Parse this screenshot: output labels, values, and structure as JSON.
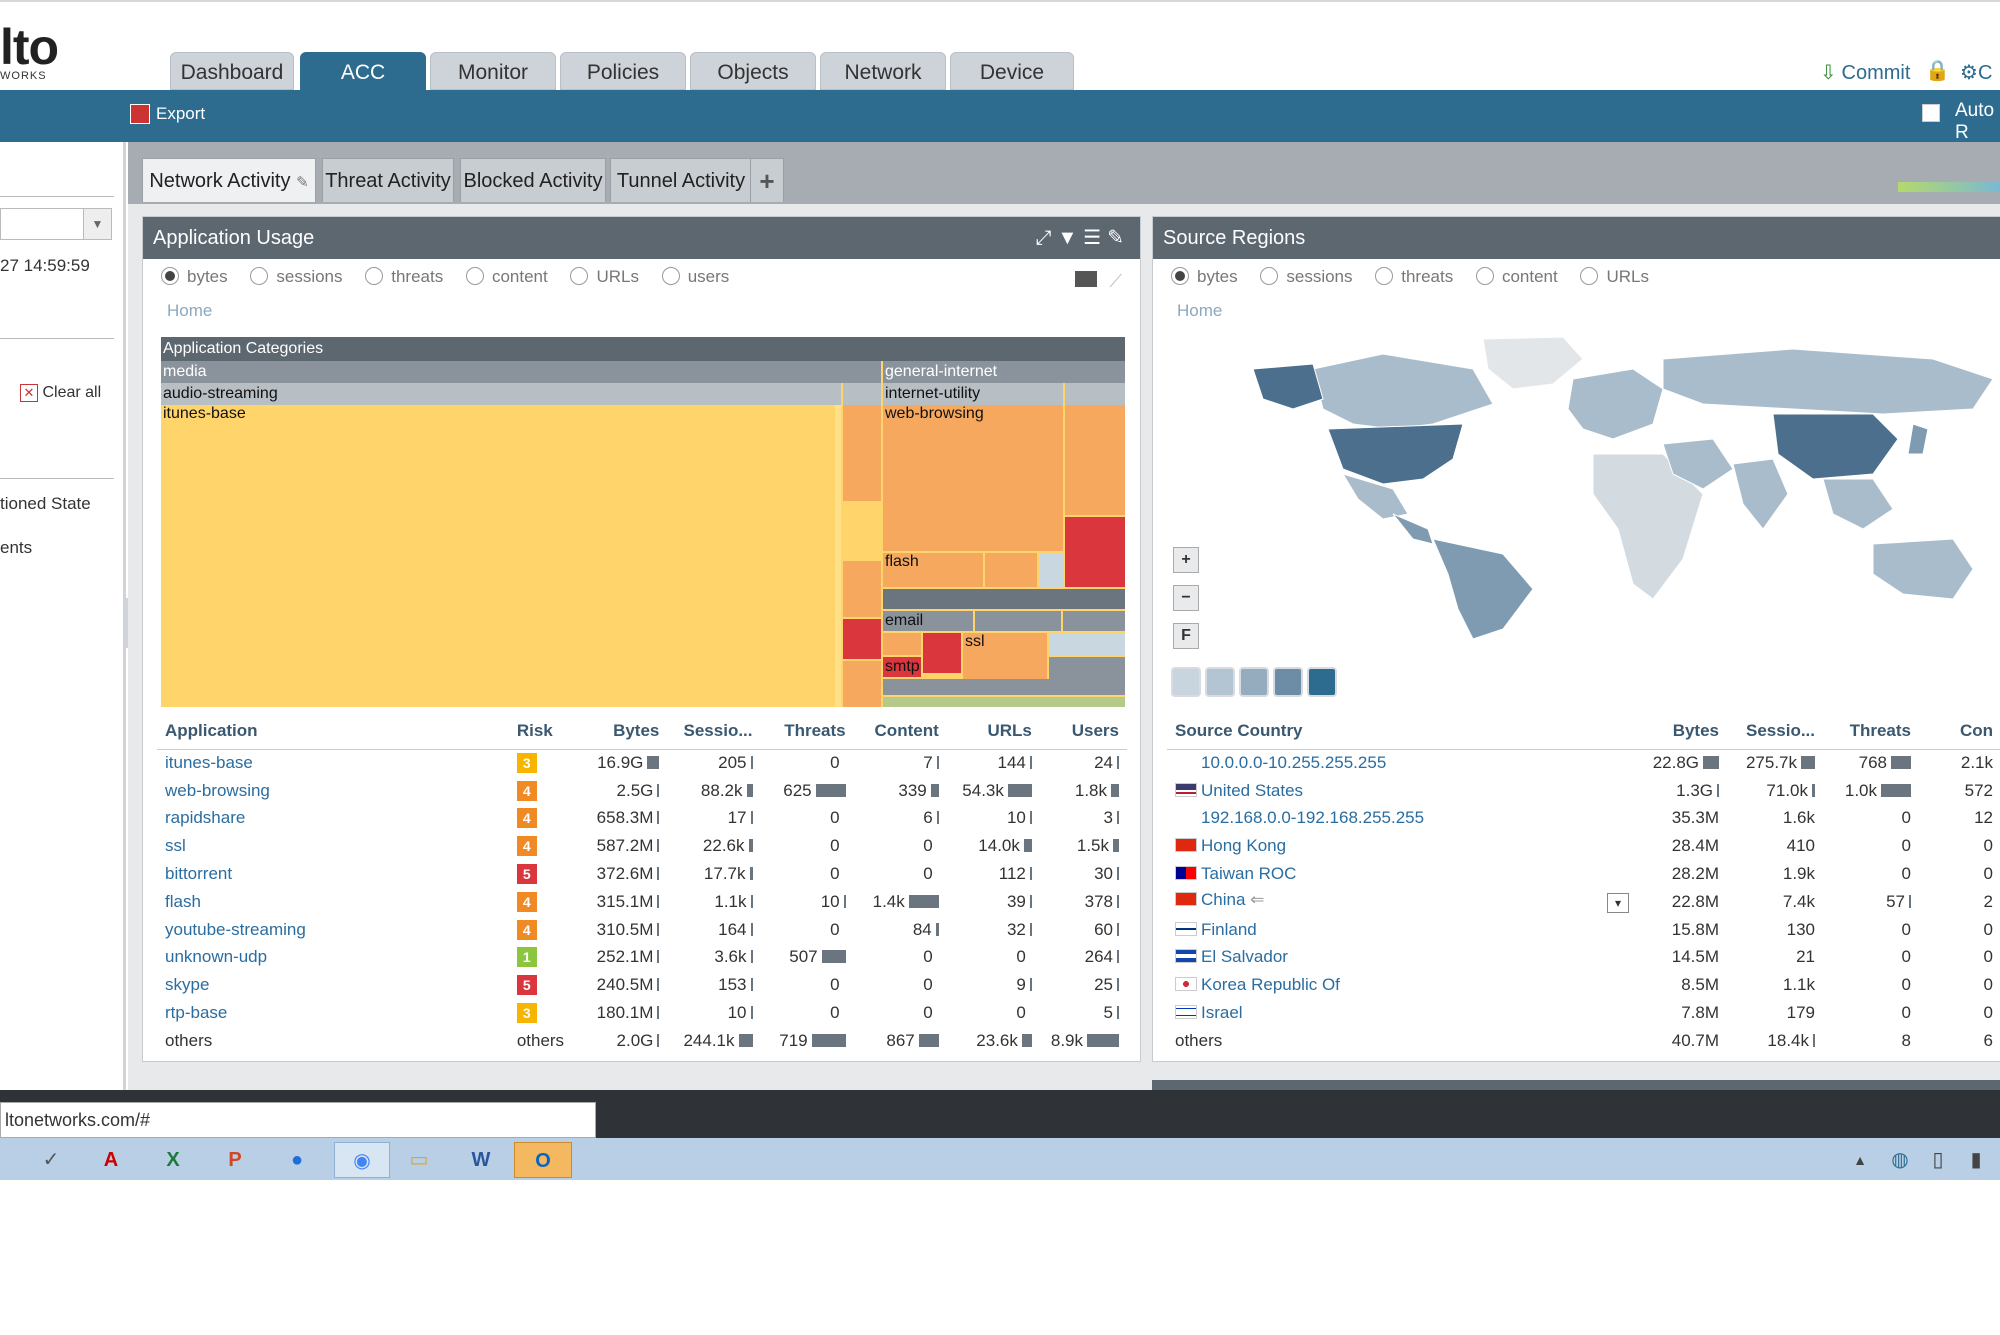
{
  "app": {
    "logo_text": "lto",
    "logo_sub": "WORKS",
    "nav_tabs": [
      "Dashboard",
      "ACC",
      "Monitor",
      "Policies",
      "Objects",
      "Network",
      "Device"
    ],
    "active_nav": "ACC",
    "commit_label": "Commit",
    "config_label": "C",
    "export_label": "Export",
    "auto_label": "Auto R"
  },
  "left": {
    "timestamp": "27 14:59:59",
    "clear_all": "Clear all",
    "item1": "tioned State",
    "item2": "ents"
  },
  "subtabs": [
    "Network Activity",
    "Threat Activity",
    "Blocked Activity",
    "Tunnel Activity"
  ],
  "add_tab": "+",
  "app_usage": {
    "title": "Application Usage",
    "radios": [
      "bytes",
      "sessions",
      "threats",
      "content",
      "URLs",
      "users"
    ],
    "home": "Home",
    "treemap": {
      "header": "Application Categories",
      "l1": [
        "media",
        "general-internet"
      ],
      "l2": [
        "audio-streaming",
        "internet-utility"
      ],
      "l3": [
        "itunes-base",
        "web-browsing",
        "flash",
        "email",
        "ssl",
        "smtp"
      ]
    },
    "columns": [
      "Application",
      "Risk",
      "Bytes",
      "Sessio...",
      "Threats",
      "Content",
      "URLs",
      "Users"
    ],
    "rows": [
      {
        "app": "itunes-base",
        "risk": "3",
        "bytes": "16.9G",
        "sessions": "205",
        "threats": "0",
        "content": "7",
        "urls": "144",
        "users": "24"
      },
      {
        "app": "web-browsing",
        "risk": "4",
        "bytes": "2.5G",
        "sessions": "88.2k",
        "threats": "625",
        "content": "339",
        "urls": "54.3k",
        "users": "1.8k"
      },
      {
        "app": "rapidshare",
        "risk": "4",
        "bytes": "658.3M",
        "sessions": "17",
        "threats": "0",
        "content": "6",
        "urls": "10",
        "users": "3"
      },
      {
        "app": "ssl",
        "risk": "4",
        "bytes": "587.2M",
        "sessions": "22.6k",
        "threats": "0",
        "content": "0",
        "urls": "14.0k",
        "users": "1.5k"
      },
      {
        "app": "bittorrent",
        "risk": "5",
        "bytes": "372.6M",
        "sessions": "17.7k",
        "threats": "0",
        "content": "0",
        "urls": "112",
        "users": "30"
      },
      {
        "app": "flash",
        "risk": "4",
        "bytes": "315.1M",
        "sessions": "1.1k",
        "threats": "10",
        "content": "1.4k",
        "urls": "39",
        "users": "378"
      },
      {
        "app": "youtube-streaming",
        "risk": "4",
        "bytes": "310.5M",
        "sessions": "164",
        "threats": "0",
        "content": "84",
        "urls": "32",
        "users": "60"
      },
      {
        "app": "unknown-udp",
        "risk": "1",
        "bytes": "252.1M",
        "sessions": "3.6k",
        "threats": "507",
        "content": "0",
        "urls": "0",
        "users": "264"
      },
      {
        "app": "skype",
        "risk": "5",
        "bytes": "240.5M",
        "sessions": "153",
        "threats": "0",
        "content": "0",
        "urls": "9",
        "users": "25"
      },
      {
        "app": "rtp-base",
        "risk": "3",
        "bytes": "180.1M",
        "sessions": "10",
        "threats": "0",
        "content": "0",
        "urls": "0",
        "users": "5"
      },
      {
        "app": "others",
        "risk": "others",
        "bytes": "2.0G",
        "sessions": "244.1k",
        "threats": "719",
        "content": "867",
        "urls": "23.6k",
        "users": "8.9k"
      }
    ]
  },
  "source_regions": {
    "title": "Source Regions",
    "radios": [
      "bytes",
      "sessions",
      "threats",
      "content",
      "URLs"
    ],
    "home": "Home",
    "zoom_in": "+",
    "zoom_out": "−",
    "fit": "F",
    "columns": [
      "Source Country",
      "Bytes",
      "Sessio...",
      "Threats",
      "Con"
    ],
    "rows": [
      {
        "country": "10.0.0.0-10.255.255.255",
        "bytes": "22.8G",
        "sessions": "275.7k",
        "threats": "768",
        "content": "2.1k"
      },
      {
        "country": "United States",
        "bytes": "1.3G",
        "sessions": "71.0k",
        "threats": "1.0k",
        "content": "572"
      },
      {
        "country": "192.168.0.0-192.168.255.255",
        "bytes": "35.3M",
        "sessions": "1.6k",
        "threats": "0",
        "content": "12"
      },
      {
        "country": "Hong Kong",
        "bytes": "28.4M",
        "sessions": "410",
        "threats": "0",
        "content": "0"
      },
      {
        "country": "Taiwan ROC",
        "bytes": "28.2M",
        "sessions": "1.9k",
        "threats": "0",
        "content": "0"
      },
      {
        "country": "China",
        "bytes": "22.8M",
        "sessions": "7.4k",
        "threats": "57",
        "content": "2"
      },
      {
        "country": "Finland",
        "bytes": "15.8M",
        "sessions": "130",
        "threats": "0",
        "content": "0"
      },
      {
        "country": "El Salvador",
        "bytes": "14.5M",
        "sessions": "21",
        "threats": "0",
        "content": "0"
      },
      {
        "country": "Korea Republic Of",
        "bytes": "8.5M",
        "sessions": "1.1k",
        "threats": "0",
        "content": "0"
      },
      {
        "country": "Israel",
        "bytes": "7.8M",
        "sessions": "179",
        "threats": "0",
        "content": "0"
      },
      {
        "country": "others",
        "bytes": "40.7M",
        "sessions": "18.4k",
        "threats": "8",
        "content": "6"
      }
    ]
  },
  "browser": {
    "url": "ltonetworks.com/#"
  },
  "colors": {
    "nav_active": "#2d6c8f",
    "panel_head": "#5d6770",
    "link": "#2a6da0",
    "risk1": "#8cc63f",
    "risk3": "#f7b500",
    "risk4": "#f08a24",
    "risk5": "#d9363e"
  }
}
